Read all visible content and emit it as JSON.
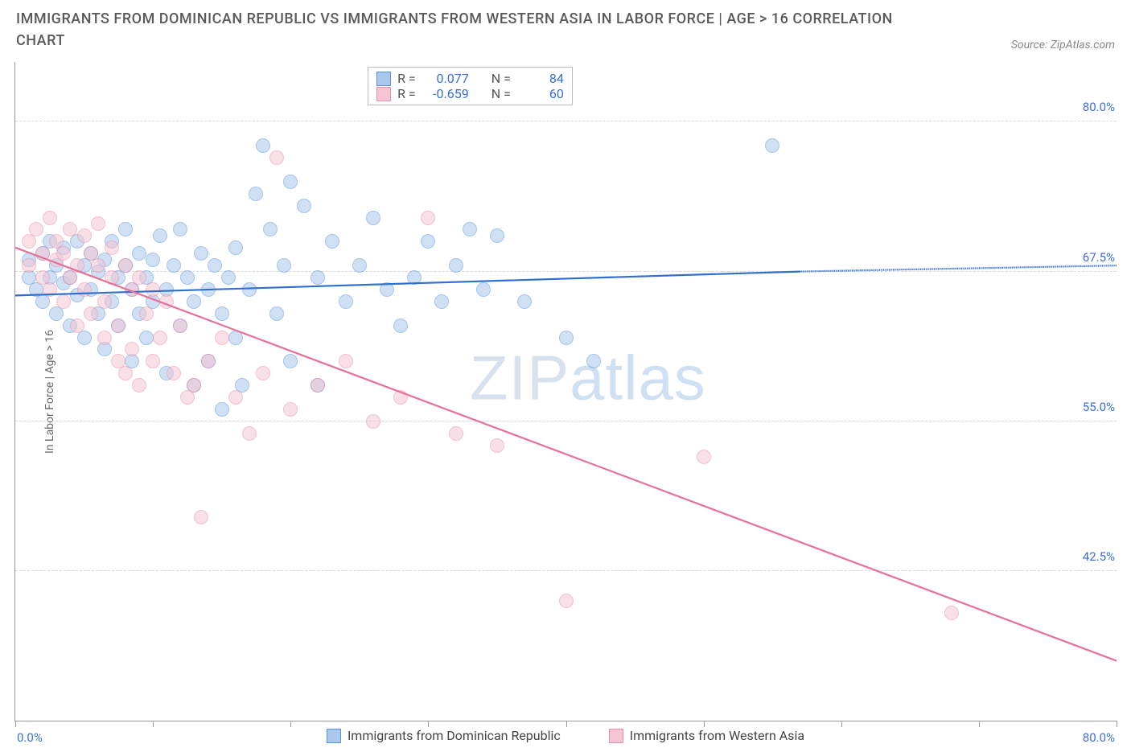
{
  "title": "IMMIGRANTS FROM DOMINICAN REPUBLIC VS IMMIGRANTS FROM WESTERN ASIA IN LABOR FORCE | AGE > 16 CORRELATION CHART",
  "source": "Source: ZipAtlas.com",
  "watermark": "ZIPatlas",
  "y_axis_title": "In Labor Force | Age > 16",
  "chart": {
    "type": "scatter",
    "xlim": [
      0,
      80
    ],
    "ylim": [
      30,
      85
    ],
    "x_ticks": [
      0,
      10,
      20,
      30,
      40,
      50,
      60,
      70,
      80
    ],
    "x_min_label": "0.0%",
    "x_max_label": "80.0%",
    "y_ticks": [
      42.5,
      55.0,
      67.5,
      80.0
    ],
    "y_tick_labels": [
      "42.5%",
      "55.0%",
      "67.5%",
      "80.0%"
    ],
    "background_color": "#ffffff",
    "grid_color": "#d8d8d8",
    "axis_label_color": "#3b6fd6",
    "title_color": "#5a5a5a",
    "title_fontsize": 18,
    "axis_fontsize": 15,
    "marker_radius": 9,
    "marker_opacity": 0.55
  },
  "series": [
    {
      "key": "dr",
      "label": "Immigrants from Dominican Republic",
      "fill": "#a9c8ec",
      "stroke": "#5a94d8",
      "line_color": "#2f6fd0",
      "R_label": "R =",
      "R": "0.077",
      "N_label": "N =",
      "N": "84",
      "trend": {
        "x1": 0,
        "y1": 65.5,
        "x2": 57,
        "y2": 67.5,
        "dash_x2": 80,
        "dash_y2": 68.0
      },
      "points": [
        [
          1,
          67
        ],
        [
          1,
          68.5
        ],
        [
          1.5,
          66
        ],
        [
          2,
          69
        ],
        [
          2,
          65
        ],
        [
          2.5,
          70
        ],
        [
          2.5,
          67
        ],
        [
          3,
          68
        ],
        [
          3,
          64
        ],
        [
          3.5,
          66.5
        ],
        [
          3.5,
          69.5
        ],
        [
          4,
          67
        ],
        [
          4,
          63
        ],
        [
          4.5,
          70
        ],
        [
          4.5,
          65.5
        ],
        [
          5,
          68
        ],
        [
          5,
          62
        ],
        [
          5.5,
          66
        ],
        [
          5.5,
          69
        ],
        [
          6,
          67.5
        ],
        [
          6,
          64
        ],
        [
          6.5,
          68.5
        ],
        [
          6.5,
          61
        ],
        [
          7,
          70
        ],
        [
          7,
          65
        ],
        [
          7.5,
          67
        ],
        [
          7.5,
          63
        ],
        [
          8,
          68
        ],
        [
          8,
          71
        ],
        [
          8.5,
          66
        ],
        [
          8.5,
          60
        ],
        [
          9,
          69
        ],
        [
          9,
          64
        ],
        [
          9.5,
          67
        ],
        [
          9.5,
          62
        ],
        [
          10,
          68.5
        ],
        [
          10,
          65
        ],
        [
          10.5,
          70.5
        ],
        [
          11,
          66
        ],
        [
          11,
          59
        ],
        [
          11.5,
          68
        ],
        [
          12,
          63
        ],
        [
          12,
          71
        ],
        [
          12.5,
          67
        ],
        [
          13,
          65
        ],
        [
          13,
          58
        ],
        [
          13.5,
          69
        ],
        [
          14,
          66
        ],
        [
          14,
          60
        ],
        [
          14.5,
          68
        ],
        [
          15,
          64
        ],
        [
          15,
          56
        ],
        [
          15.5,
          67
        ],
        [
          16,
          69.5
        ],
        [
          16,
          62
        ],
        [
          16.5,
          58
        ],
        [
          17,
          66
        ],
        [
          17.5,
          74
        ],
        [
          18,
          78
        ],
        [
          18.5,
          71
        ],
        [
          19,
          64
        ],
        [
          19.5,
          68
        ],
        [
          20,
          75
        ],
        [
          20,
          60
        ],
        [
          21,
          73
        ],
        [
          22,
          67
        ],
        [
          22,
          58
        ],
        [
          23,
          70
        ],
        [
          24,
          65
        ],
        [
          25,
          68
        ],
        [
          26,
          72
        ],
        [
          27,
          66
        ],
        [
          28,
          63
        ],
        [
          29,
          67
        ],
        [
          30,
          70
        ],
        [
          31,
          65
        ],
        [
          32,
          68
        ],
        [
          33,
          71
        ],
        [
          34,
          66
        ],
        [
          35,
          70.5
        ],
        [
          37,
          65
        ],
        [
          40,
          62
        ],
        [
          42,
          60
        ],
        [
          55,
          78
        ]
      ]
    },
    {
      "key": "wa",
      "label": "Immigrants from Western Asia",
      "fill": "#f5c5d2",
      "stroke": "#e98fab",
      "line_color": "#e86f96",
      "R_label": "R =",
      "R": "-0.659",
      "N_label": "N =",
      "N": "60",
      "trend": {
        "x1": 0,
        "y1": 69.5,
        "x2": 80,
        "y2": 35.0
      },
      "points": [
        [
          1,
          70
        ],
        [
          1,
          68
        ],
        [
          1.5,
          71
        ],
        [
          2,
          69
        ],
        [
          2,
          67
        ],
        [
          2.5,
          72
        ],
        [
          2.5,
          66
        ],
        [
          3,
          70
        ],
        [
          3,
          68.5
        ],
        [
          3.5,
          69
        ],
        [
          3.5,
          65
        ],
        [
          4,
          71
        ],
        [
          4,
          67
        ],
        [
          4.5,
          68
        ],
        [
          4.5,
          63
        ],
        [
          5,
          70.5
        ],
        [
          5,
          66
        ],
        [
          5.5,
          69
        ],
        [
          5.5,
          64
        ],
        [
          6,
          68
        ],
        [
          6,
          71.5
        ],
        [
          6.5,
          65
        ],
        [
          6.5,
          62
        ],
        [
          7,
          69.5
        ],
        [
          7,
          67
        ],
        [
          7.5,
          63
        ],
        [
          7.5,
          60
        ],
        [
          8,
          68
        ],
        [
          8,
          59
        ],
        [
          8.5,
          66
        ],
        [
          8.5,
          61
        ],
        [
          9,
          67
        ],
        [
          9,
          58
        ],
        [
          9.5,
          64
        ],
        [
          10,
          66
        ],
        [
          10,
          60
        ],
        [
          10.5,
          62
        ],
        [
          11,
          65
        ],
        [
          11.5,
          59
        ],
        [
          12,
          63
        ],
        [
          12.5,
          57
        ],
        [
          13,
          58
        ],
        [
          13.5,
          47
        ],
        [
          14,
          60
        ],
        [
          15,
          62
        ],
        [
          16,
          57
        ],
        [
          17,
          54
        ],
        [
          18,
          59
        ],
        [
          19,
          77
        ],
        [
          20,
          56
        ],
        [
          22,
          58
        ],
        [
          24,
          60
        ],
        [
          26,
          55
        ],
        [
          28,
          57
        ],
        [
          30,
          72
        ],
        [
          32,
          54
        ],
        [
          35,
          53
        ],
        [
          40,
          40
        ],
        [
          50,
          52
        ],
        [
          68,
          39
        ]
      ]
    }
  ]
}
